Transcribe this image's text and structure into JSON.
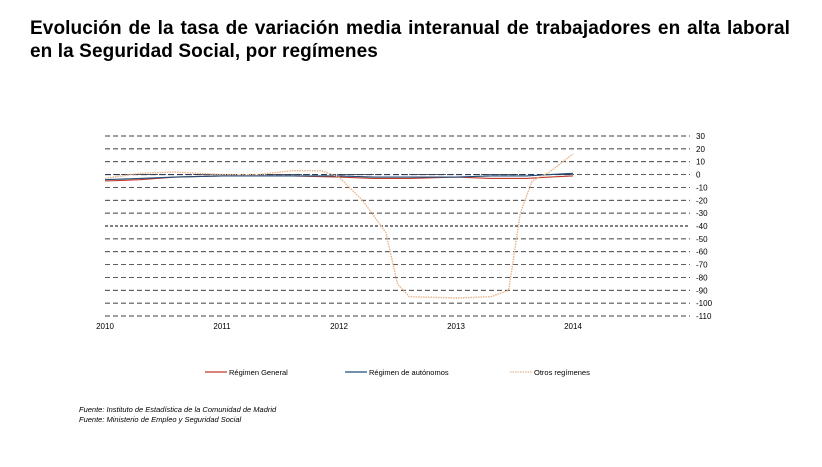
{
  "title": "Evolución de la tasa de variación media interanual de trabajadores en alta laboral en la Seguridad Social, por  regímenes",
  "sources": [
    "Fuente: Instituto de Estadística de la Comunidad de Madrid",
    "Fuente: Ministerio de Empleo y Seguridad Social"
  ],
  "colors": {
    "general": "#c0392b",
    "autonomos": "#1f4e79",
    "otros": "#e8b48a",
    "grid": "#000000"
  },
  "chart_data": {
    "type": "line",
    "xlim": [
      2010,
      2015.0
    ],
    "ylim": [
      -110,
      30
    ],
    "yticks": [
      30,
      20,
      10,
      0,
      -10,
      -20,
      -30,
      -40,
      -50,
      -60,
      -70,
      -80,
      -90,
      -100,
      -110
    ],
    "xticks": [
      "2010",
      "2011",
      "2012",
      "2013",
      "2014"
    ],
    "grid": true,
    "legend_position": "bottom",
    "series": [
      {
        "name": "Régimen General",
        "key": "general",
        "x": [
          2010.0,
          2010.3,
          2010.6,
          2011.0,
          2011.3,
          2011.6,
          2012.0,
          2012.3,
          2012.6,
          2013.0,
          2013.3,
          2013.6,
          2013.8,
          2014.0
        ],
        "y": [
          -5,
          -4,
          -2,
          -1,
          -1,
          -1,
          -2,
          -3,
          -3,
          -2,
          -3,
          -3,
          -2,
          -1
        ]
      },
      {
        "name": "Régimen de autónomos",
        "key": "autonomos",
        "x": [
          2010.0,
          2010.3,
          2010.6,
          2011.0,
          2011.3,
          2011.6,
          2012.0,
          2012.3,
          2012.6,
          2013.0,
          2013.3,
          2013.6,
          2013.8,
          2014.0
        ],
        "y": [
          -4,
          -3,
          -2,
          -1,
          -1,
          -1,
          -1,
          -2,
          -2,
          -2,
          -1,
          -1,
          0,
          1
        ]
      },
      {
        "name": "Otros regímenes",
        "key": "otros",
        "x": [
          2010.0,
          2010.3,
          2010.6,
          2011.0,
          2011.3,
          2011.6,
          2011.85,
          2012.0,
          2012.2,
          2012.4,
          2012.5,
          2012.6,
          2013.0,
          2013.3,
          2013.45,
          2013.55,
          2013.65,
          2013.8,
          2014.0
        ],
        "y": [
          -3,
          1,
          2,
          0,
          0,
          3,
          3,
          -2,
          -20,
          -45,
          -85,
          -95,
          -96,
          -95,
          -90,
          -30,
          -5,
          2,
          16
        ]
      }
    ]
  }
}
